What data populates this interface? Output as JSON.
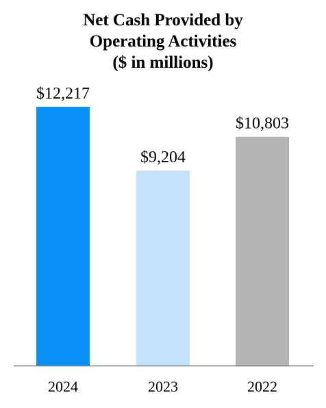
{
  "chart_data": {
    "type": "bar",
    "title_lines": [
      "Net Cash Provided by",
      "Operating Activities",
      "($ in millions)"
    ],
    "categories": [
      "2024",
      "2023",
      "2022"
    ],
    "values": [
      12217,
      9204,
      10803
    ],
    "value_labels": [
      "$12,217",
      "$9,204",
      "$10,803"
    ],
    "colors": [
      "#0a91f8",
      "#c2e3fb",
      "#b3b3b3"
    ],
    "axis_color": "#7f7f7f",
    "ylim": [
      0,
      12217
    ],
    "grid": false,
    "legend": false
  }
}
